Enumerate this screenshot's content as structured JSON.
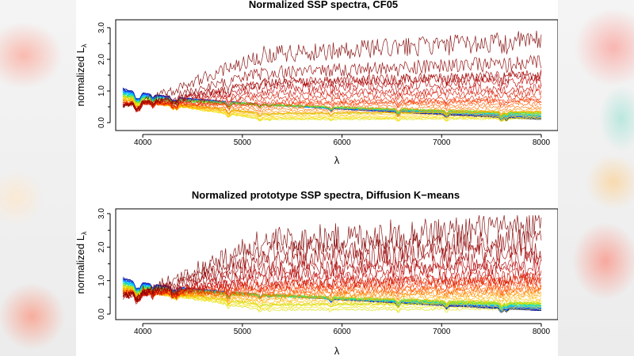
{
  "chart_data": [
    {
      "type": "line",
      "title": "Normalized SSP spectra, CF05",
      "xlabel": "λ",
      "ylabel": "normalized L",
      "ylabel_subscript": "λ",
      "xlim": [
        3800,
        8000
      ],
      "ylim": [
        0.0,
        3.0
      ],
      "x_ticks": [
        4000,
        5000,
        6000,
        7000,
        8000
      ],
      "y_ticks": [
        "0.0",
        "1.0",
        "2.0",
        "3.0"
      ],
      "y_minor_ticks": [
        0.5,
        1.5,
        2.5
      ],
      "n_series": 40,
      "red_end_levels": [
        2.6,
        1.9,
        1.5,
        1.3,
        1.1,
        0.95,
        0.8,
        0.7,
        0.6,
        0.5,
        0.42,
        0.35,
        0.28,
        0.22,
        0.18,
        0.15,
        0.12
      ],
      "colormap": [
        "#00008b",
        "#0040ff",
        "#00c0ff",
        "#00e0a0",
        "#a0e000",
        "#ffe000",
        "#ffa000",
        "#ff4000",
        "#c00000",
        "#800000"
      ]
    },
    {
      "type": "line",
      "title": "Normalized prototype SSP spectra, Diffusion K−means",
      "xlabel": "λ",
      "ylabel": "normalized L",
      "ylabel_subscript": "λ",
      "xlim": [
        3800,
        8000
      ],
      "ylim": [
        0.0,
        3.0
      ],
      "x_ticks": [
        4000,
        5000,
        6000,
        7000,
        8000
      ],
      "y_ticks": [
        "0.0",
        "1.0",
        "2.0",
        "3.0"
      ],
      "y_minor_ticks": [
        0.5,
        1.5,
        2.5
      ],
      "n_series": 40,
      "red_end_levels": [
        2.6,
        2.2,
        1.9,
        1.6,
        1.4,
        1.2,
        1.05,
        0.95,
        0.85,
        0.78,
        0.72,
        0.66,
        0.6,
        0.52,
        0.45,
        0.38,
        0.3,
        0.22,
        0.15
      ],
      "colormap": [
        "#00008b",
        "#0040ff",
        "#00c0ff",
        "#00e0a0",
        "#a0e000",
        "#ffe000",
        "#ffa000",
        "#ff4000",
        "#c00000",
        "#800000"
      ]
    }
  ]
}
